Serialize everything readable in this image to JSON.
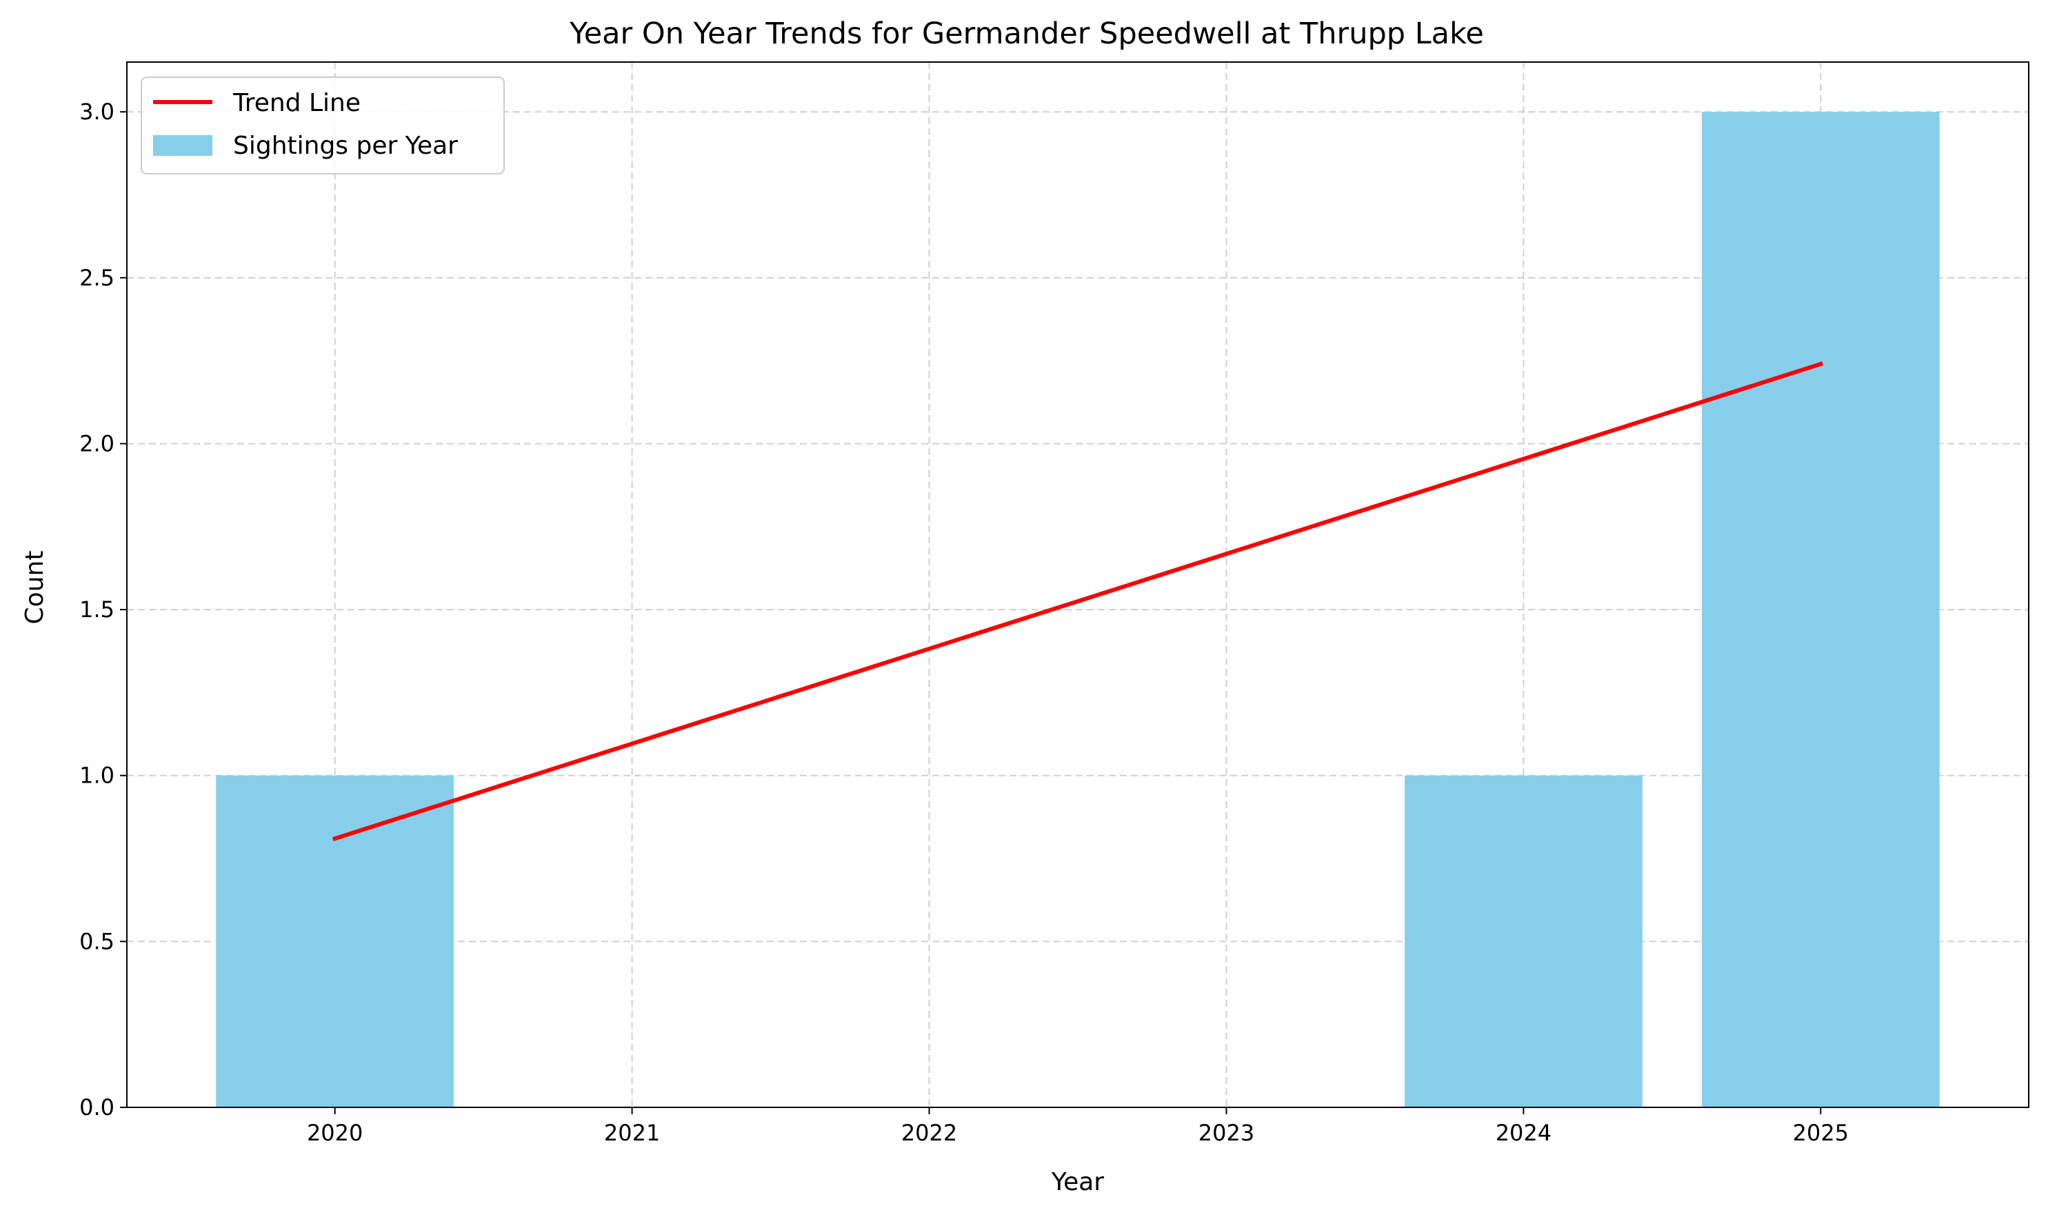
{
  "chart_data": {
    "type": "bar",
    "title": "Year On Year Trends for Germander Speedwell at Thrupp Lake",
    "xlabel": "Year",
    "ylabel": "Count",
    "categories": [
      2020,
      2021,
      2022,
      2023,
      2024,
      2025
    ],
    "x_tick_labels": [
      "2020",
      "2021",
      "2022",
      "2023",
      "2024",
      "2025"
    ],
    "y_ticks": [
      0.0,
      0.5,
      1.0,
      1.5,
      2.0,
      2.5,
      3.0
    ],
    "y_tick_labels": [
      "0.0",
      "0.5",
      "1.0",
      "1.5",
      "2.0",
      "2.5",
      "3.0"
    ],
    "xlim": [
      2019.3,
      2025.7
    ],
    "ylim": [
      0,
      3.15
    ],
    "grid": true,
    "legend_position": "top-left",
    "series": [
      {
        "name": "Sightings per Year",
        "kind": "bar",
        "color": "#87ceeb",
        "x": [
          2020,
          2021,
          2022,
          2023,
          2024,
          2025
        ],
        "values": [
          1,
          0,
          0,
          0,
          1,
          3
        ]
      },
      {
        "name": "Trend Line",
        "kind": "line",
        "color": "#ff0000",
        "x": [
          2020,
          2025
        ],
        "values": [
          0.81,
          2.24
        ]
      }
    ]
  }
}
